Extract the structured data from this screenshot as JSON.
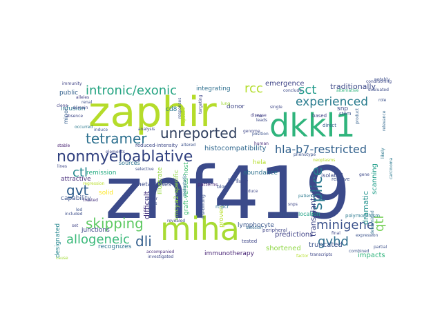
{
  "words": [
    {
      "text": "znf419",
      "color": "#3b4a8a"
    },
    {
      "text": "zaphir",
      "color": "#b5dc2a"
    },
    {
      "text": "miha",
      "color": "#a8db34"
    },
    {
      "text": "dkkl1",
      "color": "#2fb47c"
    },
    {
      "text": "nonmyeloablative",
      "color": "#2f3f7e"
    },
    {
      "text": "tetramer",
      "color": "#2b6f8e"
    },
    {
      "text": "unreported",
      "color": "#30405f"
    },
    {
      "text": "intronic/exonic",
      "color": "#26a482"
    },
    {
      "text": "sct",
      "color": "#1f9a8a"
    },
    {
      "text": "rcc",
      "color": "#b3dd2c"
    },
    {
      "text": "experienced",
      "color": "#2a7c8e"
    },
    {
      "text": "hla-b7-restricted",
      "color": "#33628d"
    },
    {
      "text": "gvt",
      "color": "#2c5c8c"
    },
    {
      "text": "ctl",
      "color": "#23888e"
    },
    {
      "text": "skipping",
      "color": "#5ec962"
    },
    {
      "text": "allogeneic",
      "color": "#3bb97a"
    },
    {
      "text": "dli",
      "color": "#35608d"
    },
    {
      "text": "minigene",
      "color": "#3b528b"
    },
    {
      "text": "splice",
      "color": "#2a788e"
    },
    {
      "text": "qtl",
      "color": "#74d055"
    },
    {
      "text": "gvhd",
      "color": "#2e6e8e"
    },
    {
      "text": "traditionally",
      "color": "#3e4a89"
    },
    {
      "text": "emergence",
      "color": "#404688"
    },
    {
      "text": "histocompatibility",
      "color": "#31688e"
    },
    {
      "text": "transplantation",
      "color": "#3f4889"
    },
    {
      "text": "immunotherapy",
      "color": "#482475"
    },
    {
      "text": "shortened",
      "color": "#8fd744"
    },
    {
      "text": "truncated",
      "color": "#3b528b"
    },
    {
      "text": "predictions",
      "color": "#414487"
    },
    {
      "text": "impacts",
      "color": "#2fb47c"
    },
    {
      "text": "dramatic",
      "color": "#21918c"
    },
    {
      "text": "scanning",
      "color": "#1f9e89"
    },
    {
      "text": "metastases",
      "color": "#3e4c8a"
    },
    {
      "text": "infusion",
      "color": "#2a788e"
    },
    {
      "text": "public",
      "color": "#34618d"
    },
    {
      "text": "attractive",
      "color": "#472d7b"
    },
    {
      "text": "capability",
      "color": "#3b528b"
    },
    {
      "text": "solid",
      "color": "#fde725"
    },
    {
      "text": "remission",
      "color": "#25ab82"
    },
    {
      "text": "junctions",
      "color": "#3f4788"
    },
    {
      "text": "recognizes",
      "color": "#2c728e"
    },
    {
      "text": "difficult",
      "color": "#46337f"
    },
    {
      "text": "designated",
      "color": "#24868e"
    },
    {
      "text": "lymphocyte",
      "color": "#39568c"
    },
    {
      "text": "abundance",
      "color": "#2d708e"
    },
    {
      "text": "proven",
      "color": "#b8de29"
    },
    {
      "text": "integrating",
      "color": "#2e6f8e"
    },
    {
      "text": "snp",
      "color": "#3e4a89"
    },
    {
      "text": "donor",
      "color": "#3f4788"
    },
    {
      "text": "hela",
      "color": "#b5de2b"
    },
    {
      "text": "graft-versus-host",
      "color": "#3fbc73"
    },
    {
      "text": "smcy.a2-specific",
      "color": "#8fd744"
    },
    {
      "text": "illustrate",
      "color": "#95d840"
    },
    {
      "text": "sources",
      "color": "#2c728e"
    },
    {
      "text": "reduced-intensity",
      "color": "#3e4989"
    },
    {
      "text": "cd8",
      "color": "#2b758e"
    },
    {
      "text": "minor",
      "color": "#355e8d"
    },
    {
      "text": "polymorphism",
      "color": "#2a788e"
    },
    {
      "text": "isolated",
      "color": "#3e4c8a"
    },
    {
      "text": "antigen",
      "color": "#3a538b"
    },
    {
      "text": "location",
      "color": "#20a386"
    },
    {
      "text": "stem",
      "color": "#3b528b"
    },
    {
      "text": "patterns",
      "color": "#482878"
    },
    {
      "text": "alternative",
      "color": "#2fb47c"
    },
    {
      "text": "evaluated",
      "color": "#3d4d8a"
    },
    {
      "text": "conditioning",
      "color": "#3e4a89"
    },
    {
      "text": "peripheral",
      "color": "#404688"
    },
    {
      "text": "blood",
      "color": "#3b518b"
    },
    {
      "text": "rt-pcr",
      "color": "#2d708e"
    },
    {
      "text": "tested",
      "color": "#3f4788"
    },
    {
      "text": "deletion",
      "color": "#31688e"
    },
    {
      "text": "relative",
      "color": "#3c4f8a"
    },
    {
      "text": "direct",
      "color": "#355f8d"
    },
    {
      "text": "single",
      "color": "#3f4889"
    },
    {
      "text": "based",
      "color": "#414487"
    },
    {
      "text": "clone",
      "color": "#423f85"
    },
    {
      "text": "renal",
      "color": "#3c4f8a"
    },
    {
      "text": "domain",
      "color": "#404588"
    },
    {
      "text": "alleles",
      "color": "#433e85"
    },
    {
      "text": "absence",
      "color": "#3f4889"
    },
    {
      "text": "immunity",
      "color": "#414487"
    },
    {
      "text": "induce",
      "color": "#3a548c"
    },
    {
      "text": "occurred",
      "color": "#2a788e"
    },
    {
      "text": "stable",
      "color": "#482173"
    },
    {
      "text": "lines",
      "color": "#3f4788"
    },
    {
      "text": "treated",
      "color": "#46337f"
    },
    {
      "text": "included",
      "color": "#3d4e8a"
    },
    {
      "text": "elements",
      "color": "#3f4889"
    },
    {
      "text": "regression",
      "color": "#b8de29"
    },
    {
      "text": "set",
      "color": "#414487"
    },
    {
      "text": "cause",
      "color": "#a2da37"
    },
    {
      "text": "led",
      "color": "#3b528b"
    },
    {
      "text": "accompanied",
      "color": "#472c7a"
    },
    {
      "text": "investigated",
      "color": "#3e4989"
    },
    {
      "text": "revealed",
      "color": "#404588"
    },
    {
      "text": "altered",
      "color": "#3b518b"
    },
    {
      "text": "dna-binding",
      "color": "#3b528b"
    },
    {
      "text": "metastatic",
      "color": "#2a788e"
    },
    {
      "text": "human",
      "color": "#472a7a"
    },
    {
      "text": "genome",
      "color": "#3f4788"
    },
    {
      "text": "position",
      "color": "#3b528b"
    },
    {
      "text": "rna",
      "color": "#3f4788"
    },
    {
      "text": "leads",
      "color": "#3e4a89"
    },
    {
      "text": "disease",
      "color": "#433e85"
    },
    {
      "text": "conclude",
      "color": "#3e4c8a"
    },
    {
      "text": "notably",
      "color": "#3d4e8a"
    },
    {
      "text": "final",
      "color": "#3f4788"
    },
    {
      "text": "expression",
      "color": "#3b528b"
    },
    {
      "text": "partial",
      "color": "#3c4f8a"
    },
    {
      "text": "determined",
      "color": "#2d708e"
    },
    {
      "text": "combined",
      "color": "#3b528b"
    },
    {
      "text": "transcripts",
      "color": "#3f4788"
    },
    {
      "text": "factor",
      "color": "#b5de2b"
    },
    {
      "text": "snps",
      "color": "#3f4788"
    },
    {
      "text": "patient",
      "color": "#2a788e"
    },
    {
      "text": "assay",
      "color": "#3e4989"
    },
    {
      "text": "produce",
      "color": "#3f4788"
    },
    {
      "text": "mrna",
      "color": "#3b518b"
    },
    {
      "text": "carcinoma",
      "color": "#2a788e"
    },
    {
      "text": "relevance",
      "color": "#31688e"
    },
    {
      "text": "product",
      "color": "#35608d"
    },
    {
      "text": "gene",
      "color": "#3e4a89"
    },
    {
      "text": "selective",
      "color": "#3d4e8a"
    },
    {
      "text": "lung",
      "color": "#a0da39"
    },
    {
      "text": "responses",
      "color": "#3b528b"
    },
    {
      "text": "targeting",
      "color": "#3f4788"
    },
    {
      "text": "specific",
      "color": "#b5de2b"
    },
    {
      "text": "analysis",
      "color": "#3f4788"
    },
    {
      "text": "phenotype",
      "color": "#3b528b"
    },
    {
      "text": "neoplasms",
      "color": "#b8de29"
    },
    {
      "text": "tumor",
      "color": "#3f4788"
    },
    {
      "text": "cells",
      "color": "#3d4e8a"
    },
    {
      "text": "well",
      "color": "#3f4788"
    },
    {
      "text": "role",
      "color": "#3b528b"
    },
    {
      "text": "likely",
      "color": "#2a788e"
    }
  ]
}
